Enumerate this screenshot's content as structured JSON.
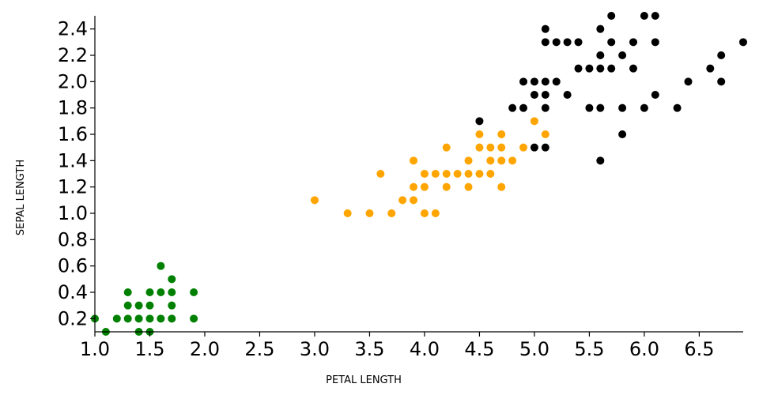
{
  "chart_data": {
    "type": "scatter",
    "xlabel": "PETAL LENGTH",
    "ylabel": "SEPAL LENGTH",
    "xlim": [
      1.0,
      6.9
    ],
    "ylim": [
      0.1,
      2.5
    ],
    "xticks": [
      "1.0",
      "1.5",
      "2.0",
      "2.5",
      "3.0",
      "3.5",
      "4.0",
      "4.5",
      "5.0",
      "5.5",
      "6.0",
      "6.5"
    ],
    "yticks": [
      "0.2",
      "0.4",
      "0.6",
      "0.8",
      "1.0",
      "1.2",
      "1.4",
      "1.6",
      "1.8",
      "2.0",
      "2.2",
      "2.4"
    ],
    "grid": false,
    "legend": "none",
    "series": [
      {
        "color": "#008000",
        "points": [
          [
            1.0,
            0.2
          ],
          [
            1.1,
            0.1
          ],
          [
            1.2,
            0.2
          ],
          [
            1.3,
            0.2
          ],
          [
            1.3,
            0.3
          ],
          [
            1.3,
            0.4
          ],
          [
            1.4,
            0.1
          ],
          [
            1.4,
            0.2
          ],
          [
            1.4,
            0.3
          ],
          [
            1.5,
            0.1
          ],
          [
            1.5,
            0.2
          ],
          [
            1.5,
            0.3
          ],
          [
            1.5,
            0.4
          ],
          [
            1.6,
            0.2
          ],
          [
            1.6,
            0.4
          ],
          [
            1.6,
            0.6
          ],
          [
            1.7,
            0.2
          ],
          [
            1.7,
            0.3
          ],
          [
            1.7,
            0.4
          ],
          [
            1.7,
            0.5
          ],
          [
            1.9,
            0.2
          ],
          [
            1.9,
            0.4
          ]
        ]
      },
      {
        "color": "#ffa500",
        "points": [
          [
            3.0,
            1.1
          ],
          [
            3.3,
            1.0
          ],
          [
            3.5,
            1.0
          ],
          [
            3.6,
            1.3
          ],
          [
            3.7,
            1.0
          ],
          [
            3.8,
            1.1
          ],
          [
            3.9,
            1.1
          ],
          [
            3.9,
            1.2
          ],
          [
            3.9,
            1.4
          ],
          [
            4.0,
            1.0
          ],
          [
            4.0,
            1.2
          ],
          [
            4.0,
            1.3
          ],
          [
            4.1,
            1.0
          ],
          [
            4.1,
            1.3
          ],
          [
            4.2,
            1.2
          ],
          [
            4.2,
            1.3
          ],
          [
            4.2,
            1.5
          ],
          [
            4.3,
            1.3
          ],
          [
            4.4,
            1.2
          ],
          [
            4.4,
            1.3
          ],
          [
            4.4,
            1.4
          ],
          [
            4.5,
            1.3
          ],
          [
            4.5,
            1.5
          ],
          [
            4.5,
            1.6
          ],
          [
            4.6,
            1.3
          ],
          [
            4.6,
            1.4
          ],
          [
            4.6,
            1.5
          ],
          [
            4.7,
            1.2
          ],
          [
            4.7,
            1.4
          ],
          [
            4.7,
            1.5
          ],
          [
            4.7,
            1.6
          ],
          [
            4.8,
            1.4
          ],
          [
            4.9,
            1.5
          ],
          [
            5.0,
            1.7
          ],
          [
            5.1,
            1.6
          ]
        ]
      },
      {
        "color": "#000000",
        "points": [
          [
            4.5,
            1.7
          ],
          [
            4.8,
            1.8
          ],
          [
            4.9,
            1.8
          ],
          [
            4.9,
            2.0
          ],
          [
            5.0,
            1.5
          ],
          [
            5.0,
            1.9
          ],
          [
            5.0,
            2.0
          ],
          [
            5.1,
            1.5
          ],
          [
            5.1,
            1.8
          ],
          [
            5.1,
            1.9
          ],
          [
            5.1,
            2.0
          ],
          [
            5.1,
            2.3
          ],
          [
            5.1,
            2.4
          ],
          [
            5.2,
            2.0
          ],
          [
            5.2,
            2.3
          ],
          [
            5.3,
            1.9
          ],
          [
            5.3,
            2.3
          ],
          [
            5.4,
            2.1
          ],
          [
            5.4,
            2.3
          ],
          [
            5.5,
            1.8
          ],
          [
            5.5,
            2.1
          ],
          [
            5.6,
            1.4
          ],
          [
            5.6,
            1.8
          ],
          [
            5.6,
            2.1
          ],
          [
            5.6,
            2.2
          ],
          [
            5.6,
            2.4
          ],
          [
            5.7,
            2.1
          ],
          [
            5.7,
            2.3
          ],
          [
            5.7,
            2.5
          ],
          [
            5.8,
            1.6
          ],
          [
            5.8,
            1.8
          ],
          [
            5.8,
            2.2
          ],
          [
            5.9,
            2.1
          ],
          [
            5.9,
            2.3
          ],
          [
            6.0,
            1.8
          ],
          [
            6.0,
            2.5
          ],
          [
            6.1,
            1.9
          ],
          [
            6.1,
            2.3
          ],
          [
            6.1,
            2.5
          ],
          [
            6.3,
            1.8
          ],
          [
            6.4,
            2.0
          ],
          [
            6.6,
            2.1
          ],
          [
            6.7,
            2.0
          ],
          [
            6.7,
            2.2
          ],
          [
            6.9,
            2.3
          ]
        ]
      }
    ]
  }
}
